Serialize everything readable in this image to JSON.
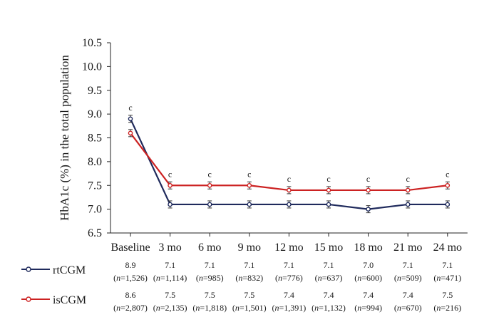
{
  "chart_data": {
    "type": "line",
    "ylabel": "HbA1c (%) in the total population",
    "xlabel": "",
    "ylim": [
      6.5,
      10.5
    ],
    "yticks": [
      "6.5",
      "7.0",
      "7.5",
      "8.0",
      "8.5",
      "9.0",
      "9.5",
      "10.0",
      "10.5"
    ],
    "categories": [
      "Baseline",
      "3 mo",
      "6 mo",
      "9 mo",
      "12 mo",
      "15 mo",
      "18 mo",
      "21 mo",
      "24 mo"
    ],
    "annotations": [
      "c",
      "c",
      "c",
      "c",
      "c",
      "c",
      "c",
      "c",
      "c"
    ],
    "series": [
      {
        "name": "rtCGM",
        "color": "#1f2a5c",
        "values": [
          8.9,
          7.1,
          7.1,
          7.1,
          7.1,
          7.1,
          7.0,
          7.1,
          7.1
        ],
        "value_labels": [
          "8.9",
          "7.1",
          "7.1",
          "7.1",
          "7.1",
          "7.1",
          "7.0",
          "7.1",
          "7.1"
        ],
        "n_labels": [
          "1,526",
          "1,114",
          "985",
          "832",
          "776",
          "637",
          "600",
          "509",
          "471"
        ]
      },
      {
        "name": "isCGM",
        "color": "#cc2222",
        "values": [
          8.6,
          7.5,
          7.5,
          7.5,
          7.4,
          7.4,
          7.4,
          7.4,
          7.5
        ],
        "value_labels": [
          "8.6",
          "7.5",
          "7.5",
          "7.5",
          "7.4",
          "7.4",
          "7.4",
          "7.4",
          "7.5"
        ],
        "n_labels": [
          "2,807",
          "2,135",
          "1,818",
          "1,501",
          "1,391",
          "1,132",
          "994",
          "670",
          "216"
        ]
      }
    ],
    "n_prefix": "n",
    "grid": false
  }
}
